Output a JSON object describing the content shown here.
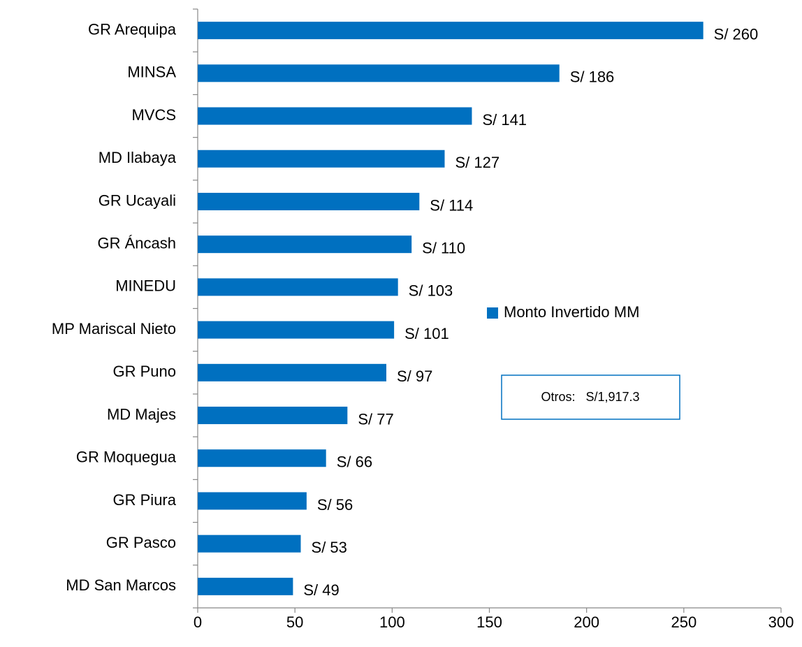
{
  "chart_data": {
    "type": "bar",
    "orientation": "horizontal",
    "categories": [
      "GR Arequipa",
      "MINSA",
      "MVCS",
      "MD Ilabaya",
      "GR Ucayali",
      "GR Áncash",
      "MINEDU",
      "MP Mariscal Nieto",
      "GR Puno",
      "MD Majes",
      "GR Moquegua",
      "GR Piura",
      "GR Pasco",
      "MD San Marcos"
    ],
    "series": [
      {
        "name": "Monto Invertido MM",
        "color": "#0070c0",
        "values": [
          260,
          186,
          141,
          127,
          114,
          110,
          103,
          101,
          97,
          77,
          66,
          56,
          53,
          49
        ],
        "value_labels": [
          "S/ 260",
          "S/ 186",
          "S/ 141",
          "S/ 127",
          "S/ 114",
          "S/ 110",
          "S/ 103",
          "S/ 101",
          "S/ 97",
          "S/ 77",
          "S/ 66",
          "S/ 56",
          "S/ 53",
          "S/ 49"
        ]
      }
    ],
    "xlim": [
      0,
      300
    ],
    "xticks": [
      0,
      50,
      100,
      150,
      200,
      250,
      300
    ],
    "legend": "right",
    "annotation": "Otros:   S/1,917.3"
  }
}
